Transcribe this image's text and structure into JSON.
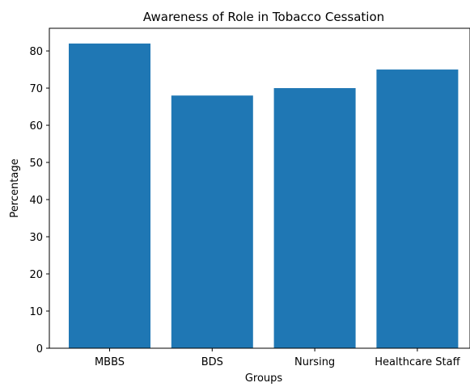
{
  "chart_data": {
    "type": "bar",
    "title": "Awareness of Role in Tobacco Cessation",
    "xlabel": "Groups",
    "ylabel": "Percentage",
    "categories": [
      "MBBS",
      "BDS",
      "Nursing",
      "Healthcare Staff"
    ],
    "values": [
      82,
      68,
      70,
      75
    ],
    "ylim": [
      0,
      86.1
    ],
    "yticks": [
      0,
      10,
      20,
      30,
      40,
      50,
      60,
      70,
      80
    ],
    "bar_color": "#1f77b4",
    "grid": false,
    "legend": "none"
  }
}
